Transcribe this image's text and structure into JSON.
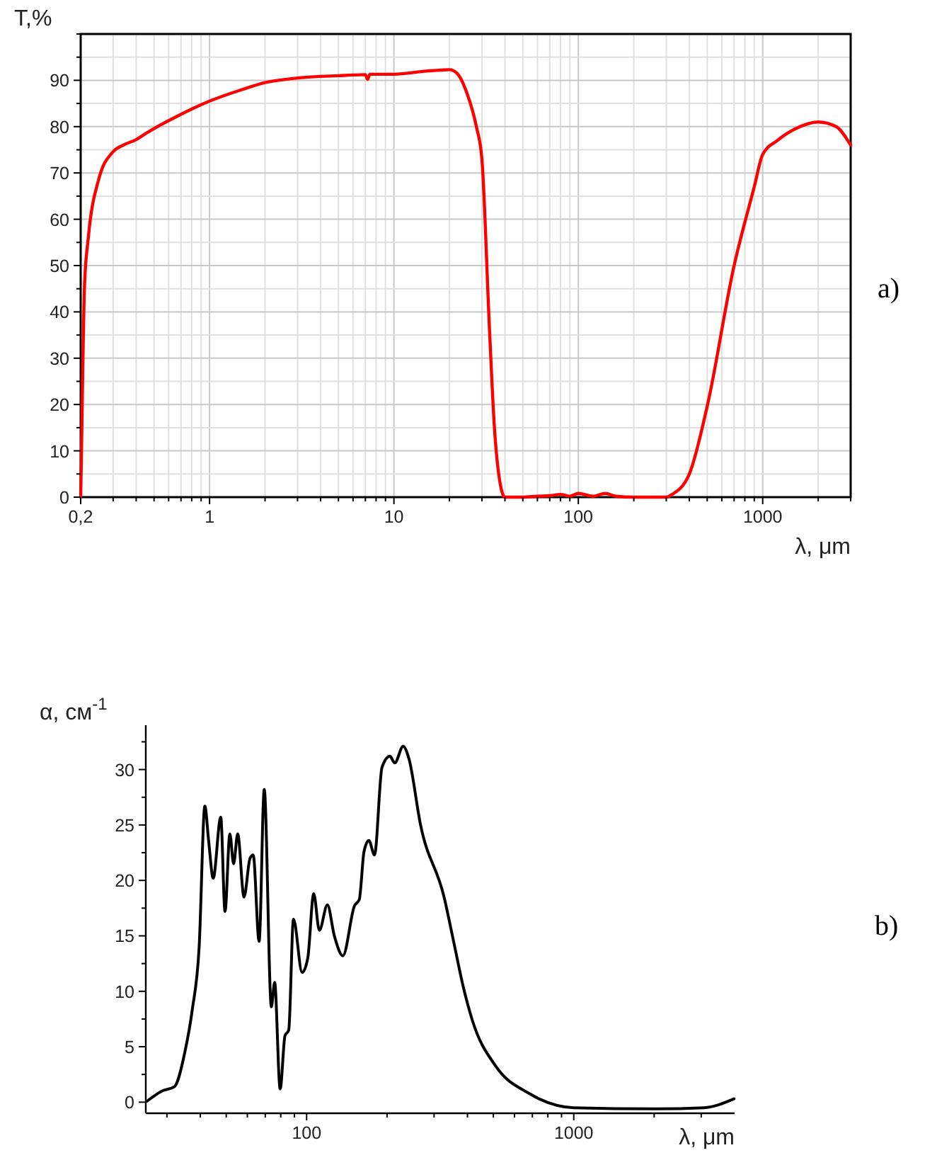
{
  "chart_data": [
    {
      "type": "line",
      "xlabel": "λ, μm",
      "ylabel": "T,%",
      "log": "x",
      "grid": true,
      "marker": "none",
      "line_style": "solid",
      "xlim": [
        0.2,
        3000
      ],
      "ylim": [
        0,
        100
      ],
      "xticks": [
        {
          "value": 0.2,
          "label": "0,2"
        },
        {
          "value": 0.3,
          "label": null
        },
        {
          "value": 0.4,
          "label": null
        },
        {
          "value": 0.5,
          "label": null
        },
        {
          "value": 0.6,
          "label": null
        },
        {
          "value": 0.7,
          "label": null
        },
        {
          "value": 0.8,
          "label": null
        },
        {
          "value": 0.9,
          "label": null
        },
        1,
        {
          "value": 2,
          "label": null
        },
        {
          "value": 3,
          "label": null
        },
        {
          "value": 4,
          "label": null
        },
        {
          "value": 5,
          "label": null
        },
        {
          "value": 6,
          "label": null
        },
        {
          "value": 7,
          "label": null
        },
        {
          "value": 8,
          "label": null
        },
        {
          "value": 9,
          "label": null
        },
        10,
        {
          "value": 20,
          "label": null
        },
        {
          "value": 30,
          "label": null
        },
        {
          "value": 40,
          "label": null
        },
        {
          "value": 50,
          "label": null
        },
        {
          "value": 60,
          "label": null
        },
        {
          "value": 70,
          "label": null
        },
        {
          "value": 80,
          "label": null
        },
        {
          "value": 90,
          "label": null
        },
        100,
        {
          "value": 200,
          "label": null
        },
        {
          "value": 300,
          "label": null
        },
        {
          "value": 400,
          "label": null
        },
        {
          "value": 500,
          "label": null
        },
        {
          "value": 600,
          "label": null
        },
        {
          "value": 700,
          "label": null
        },
        {
          "value": 800,
          "label": null
        },
        {
          "value": 900,
          "label": null
        },
        1000,
        {
          "value": 2000,
          "label": null
        },
        {
          "value": 3000,
          "label": null
        }
      ],
      "yticks": [
        0,
        {
          "value": 5,
          "label": null
        },
        10,
        {
          "value": 15,
          "label": null
        },
        20,
        {
          "value": 25,
          "label": null
        },
        30,
        {
          "value": 35,
          "label": null
        },
        40,
        {
          "value": 45,
          "label": null
        },
        50,
        {
          "value": 55,
          "label": null
        },
        60,
        {
          "value": 65,
          "label": null
        },
        70,
        {
          "value": 75,
          "label": null
        },
        80,
        {
          "value": 85,
          "label": null
        },
        90,
        {
          "value": 95,
          "label": null
        },
        {
          "value": 100,
          "label": null
        }
      ],
      "annotations": [
        "a)"
      ],
      "series": [
        {
          "color": "#ff0000",
          "x": [
            0.2,
            0.203,
            0.205,
            0.21,
            0.22,
            0.25,
            0.3,
            0.34,
            0.4,
            0.45,
            0.55,
            0.65,
            0.8,
            1,
            1.5,
            2,
            3,
            5,
            7,
            7.2,
            7.4,
            10,
            15,
            18,
            20,
            22,
            25,
            28,
            30,
            33,
            35,
            37,
            40,
            50,
            60,
            70,
            80,
            90,
            100,
            120,
            140,
            160,
            200,
            300,
            320,
            400,
            500,
            700,
            900,
            1000,
            1200,
            1500,
            2000,
            2500,
            3000
          ],
          "values": [
            0,
            15,
            26,
            46,
            56,
            68.5,
            74.6,
            76,
            77.2,
            78.5,
            80.5,
            82,
            83.8,
            85.5,
            88,
            89.5,
            90.5,
            91,
            91.2,
            90.2,
            91.3,
            91.3,
            92,
            92.2,
            92.3,
            91.5,
            87,
            80,
            73,
            36,
            15.6,
            5,
            0,
            0,
            0.2,
            0.3,
            0.6,
            0.2,
            0.8,
            0.2,
            0.8,
            0.2,
            0,
            0,
            0.5,
            5,
            19.6,
            50,
            67,
            74,
            77,
            79.5,
            81,
            80,
            76
          ]
        }
      ]
    },
    {
      "type": "line",
      "xlabel": "λ, μm",
      "ylabel": "α, см$^{-1}$",
      "log": "x",
      "grid": false,
      "marker": "none",
      "line_style": "solid",
      "xlim": [
        25,
        4000
      ],
      "ylim": [
        -1,
        34
      ],
      "xticks": [
        {
          "value": 30,
          "label": null
        },
        {
          "value": 40,
          "label": null
        },
        {
          "value": 50,
          "label": null
        },
        {
          "value": 60,
          "label": null
        },
        {
          "value": 70,
          "label": null
        },
        {
          "value": 80,
          "label": null
        },
        {
          "value": 90,
          "label": null
        },
        100,
        {
          "value": 200,
          "label": null
        },
        {
          "value": 300,
          "label": null
        },
        {
          "value": 400,
          "label": null
        },
        {
          "value": 500,
          "label": null
        },
        {
          "value": 600,
          "label": null
        },
        {
          "value": 700,
          "label": null
        },
        {
          "value": 800,
          "label": null
        },
        {
          "value": 900,
          "label": null
        },
        1000,
        {
          "value": 2000,
          "label": null
        },
        {
          "value": 3000,
          "label": null
        }
      ],
      "yticks": [
        0,
        {
          "value": 2.5,
          "label": null
        },
        5,
        {
          "value": 7.5,
          "label": null
        },
        10,
        {
          "value": 12.5,
          "label": null
        },
        15,
        {
          "value": 17.5,
          "label": null
        },
        20,
        {
          "value": 22.5,
          "label": null
        },
        25,
        {
          "value": 27.5,
          "label": null
        },
        30,
        {
          "value": 32.5,
          "label": null
        }
      ],
      "annotations": [
        "b)"
      ],
      "series": [
        {
          "color": "#000000",
          "x": [
            25.3,
            28.7,
            32,
            35,
            37.3,
            39.6,
            41.6,
            43,
            44.7,
            47.7,
            49.5,
            51.6,
            53.3,
            55.2,
            58.3,
            61.4,
            63.1,
            66.4,
            69.4,
            73.8,
            75.9,
            79.6,
            83,
            85.7,
            89.3,
            96.2,
            101,
            106.3,
            111.6,
            119.6,
            127,
            136.7,
            151,
            157.5,
            164,
            171,
            179.5,
            191.5,
            205,
            213.8,
            229.8,
            241.4,
            267,
            327,
            355,
            385,
            417,
            512,
            679,
            1000,
            2030,
            3070,
            3980
          ],
          "values": [
            0.1,
            1,
            1.4,
            4.5,
            8.3,
            14,
            26.7,
            23.5,
            20.2,
            25.7,
            17.2,
            24.2,
            21.5,
            24.2,
            18.5,
            22,
            22.3,
            14.5,
            28.2,
            8.6,
            10.8,
            1.2,
            6,
            6.5,
            16.5,
            11.7,
            13,
            18.8,
            15.5,
            17.8,
            15,
            13.2,
            17.7,
            18.3,
            22.6,
            23.6,
            22.3,
            30.2,
            31.2,
            30.6,
            32.1,
            31,
            25,
            18.5,
            14.5,
            10.5,
            7.4,
            3.2,
            0.8,
            -0.5,
            -0.6,
            -0.5,
            0.3
          ]
        }
      ]
    }
  ]
}
